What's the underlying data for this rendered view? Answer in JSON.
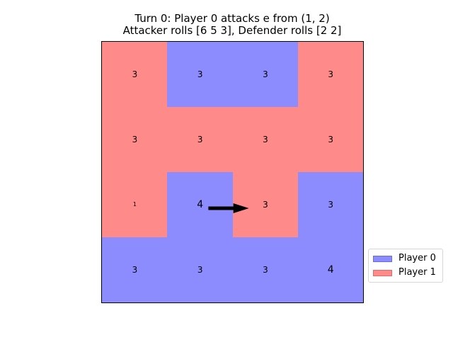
{
  "title": {
    "line1": "Turn 0: Player 0 attacks e from (1, 2)",
    "line2": "Attacker rolls [6 5 3], Defender rolls [2 2]"
  },
  "colors": {
    "player0_fill": "#8c8cff",
    "player1_fill": "#ff8a8a",
    "player0_edge": "#6b6bdc",
    "player1_edge": "#e06a6a",
    "arrow": "#000000"
  },
  "board": {
    "rows": 4,
    "cols": 4,
    "cells": [
      [
        {
          "owner": 1,
          "troops": "3"
        },
        {
          "owner": 0,
          "troops": "3"
        },
        {
          "owner": 0,
          "troops": "3"
        },
        {
          "owner": 1,
          "troops": "3"
        }
      ],
      [
        {
          "owner": 1,
          "troops": "3"
        },
        {
          "owner": 1,
          "troops": "3"
        },
        {
          "owner": 1,
          "troops": "3"
        },
        {
          "owner": 1,
          "troops": "3"
        }
      ],
      [
        {
          "owner": 1,
          "troops": "1"
        },
        {
          "owner": 0,
          "troops": "4"
        },
        {
          "owner": 1,
          "troops": "3"
        },
        {
          "owner": 0,
          "troops": "3"
        }
      ],
      [
        {
          "owner": 0,
          "troops": "3"
        },
        {
          "owner": 0,
          "troops": "3"
        },
        {
          "owner": 0,
          "troops": "3"
        },
        {
          "owner": 0,
          "troops": "4"
        }
      ]
    ]
  },
  "attack": {
    "from": [
      2,
      1
    ],
    "to": [
      2,
      2
    ]
  },
  "legend": [
    {
      "label": "Player 0",
      "owner": 0
    },
    {
      "label": "Player 1",
      "owner": 1
    }
  ]
}
